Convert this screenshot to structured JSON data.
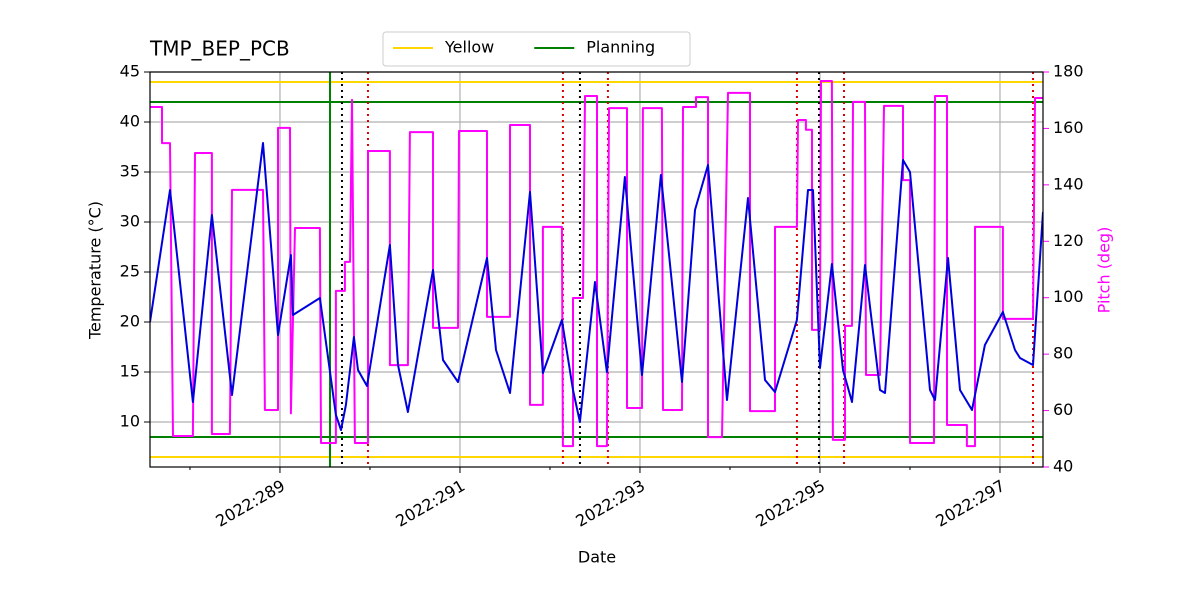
{
  "chart_data": {
    "type": "line",
    "title": "TMP_BEP_PCB",
    "xlabel": "Date",
    "ylabel": "Temperature (°C)",
    "y2label": "Pitch (deg)",
    "xlim": [
      287.556,
      297.478
    ],
    "ylim": [
      5.5,
      45
    ],
    "y2lim": [
      40,
      180
    ],
    "xticks": [
      {
        "value": 289,
        "label": "2022:289"
      },
      {
        "value": 291,
        "label": "2022:291"
      },
      {
        "value": 293,
        "label": "2022:293"
      },
      {
        "value": 295,
        "label": "2022:295"
      },
      {
        "value": 297,
        "label": "2022:297"
      }
    ],
    "xminor_ticks": [
      288,
      290,
      292,
      294,
      296
    ],
    "yticks": [
      10,
      15,
      20,
      25,
      30,
      35,
      40,
      45
    ],
    "y2ticks": [
      40,
      60,
      80,
      100,
      120,
      140,
      160,
      180
    ],
    "grid": true,
    "legend": "top",
    "y2color": "#ff00ff",
    "series": [
      {
        "color": "#0000dd",
        "axis": "y",
        "x": [
          287.556,
          287.778,
          288.033,
          288.244,
          288.467,
          288.811,
          288.978,
          289.122,
          289.144,
          289.444,
          289.622,
          289.678,
          289.733,
          289.822,
          289.867,
          289.967,
          290.222,
          290.311,
          290.422,
          290.7,
          290.811,
          290.978,
          291.3,
          291.4,
          291.556,
          291.778,
          291.922,
          292.133,
          292.256,
          292.333,
          292.5,
          292.633,
          292.833,
          293.022,
          293.233,
          293.467,
          293.611,
          293.756,
          293.967,
          294.2,
          294.389,
          294.5,
          294.744,
          294.867,
          294.922,
          295.0,
          295.133,
          295.256,
          295.356,
          295.5,
          295.667,
          295.722,
          295.922,
          296.0,
          296.222,
          296.278,
          296.422,
          296.556,
          296.689,
          296.833,
          297.033,
          297.167,
          297.222,
          297.367,
          297.478
        ],
        "values": [
          20.0,
          33.2,
          12.0,
          30.7,
          12.7,
          37.9,
          18.7,
          26.7,
          20.7,
          22.4,
          10.7,
          9.2,
          11.7,
          18.5,
          15.2,
          13.6,
          27.7,
          15.7,
          11.0,
          25.2,
          16.2,
          14.0,
          26.4,
          17.2,
          12.9,
          33.0,
          14.9,
          20.2,
          13.2,
          10.0,
          24.0,
          15.0,
          34.5,
          14.7,
          34.7,
          14.0,
          31.2,
          35.7,
          12.2,
          32.4,
          14.2,
          13.0,
          20.2,
          33.2,
          33.2,
          15.4,
          25.8,
          15.2,
          12.0,
          25.7,
          13.2,
          12.9,
          36.2,
          35.0,
          13.2,
          12.2,
          26.4,
          13.2,
          11.2,
          17.7,
          21.0,
          17.2,
          16.4,
          15.7,
          31.0
        ]
      },
      {
        "color": "#ff00ff",
        "axis": "y2",
        "x": [
          287.556,
          287.689,
          287.689,
          287.778,
          287.811,
          288.033,
          288.056,
          288.244,
          288.244,
          288.444,
          288.467,
          288.811,
          288.833,
          288.978,
          288.978,
          289.111,
          289.122,
          289.167,
          289.444,
          289.456,
          289.622,
          289.622,
          289.722,
          289.722,
          289.778,
          289.8,
          289.833,
          289.978,
          289.978,
          290.222,
          290.222,
          290.422,
          290.444,
          290.7,
          290.7,
          290.978,
          290.989,
          291.3,
          291.3,
          291.556,
          291.556,
          291.778,
          291.778,
          291.922,
          291.922,
          292.133,
          292.144,
          292.256,
          292.256,
          292.367,
          292.389,
          292.522,
          292.522,
          292.633,
          292.656,
          292.856,
          292.856,
          293.022,
          293.033,
          293.244,
          293.256,
          293.467,
          293.478,
          293.622,
          293.622,
          293.756,
          293.756,
          293.911,
          293.978,
          294.222,
          294.222,
          294.5,
          294.5,
          294.744,
          294.756,
          294.844,
          294.844,
          294.911,
          294.911,
          295.0,
          295.011,
          295.133,
          295.144,
          295.278,
          295.278,
          295.356,
          295.367,
          295.5,
          295.511,
          295.667,
          295.711,
          295.922,
          295.922,
          296.0,
          296.0,
          296.267,
          296.278,
          296.411,
          296.411,
          296.633,
          296.633,
          296.722,
          296.722,
          297.033,
          297.033,
          297.367,
          297.389,
          297.478
        ],
        "values": [
          167.6,
          167.6,
          154.8,
          154.8,
          51.0,
          51.0,
          151.3,
          151.3,
          51.7,
          51.7,
          138.2,
          138.2,
          60.2,
          60.2,
          160.2,
          160.2,
          59.0,
          124.7,
          124.7,
          48.5,
          48.5,
          102.4,
          102.4,
          112.7,
          112.7,
          170.1,
          48.5,
          48.5,
          152.0,
          152.0,
          76.1,
          76.1,
          158.7,
          158.7,
          89.3,
          89.3,
          159.1,
          159.1,
          93.2,
          93.2,
          161.2,
          161.2,
          62.0,
          62.0,
          125.1,
          125.1,
          47.4,
          47.4,
          99.9,
          99.9,
          171.5,
          171.5,
          47.4,
          47.4,
          167.2,
          167.2,
          60.9,
          60.9,
          167.2,
          167.2,
          60.2,
          60.2,
          167.6,
          167.6,
          171.1,
          171.1,
          50.6,
          50.6,
          172.6,
          172.6,
          59.8,
          59.8,
          125.1,
          125.1,
          163.0,
          163.0,
          159.5,
          159.5,
          88.6,
          88.6,
          176.8,
          176.8,
          49.6,
          49.6,
          90.0,
          90.0,
          169.4,
          169.4,
          72.6,
          72.6,
          168.0,
          168.0,
          141.7,
          141.7,
          48.5,
          48.5,
          171.5,
          171.5,
          54.9,
          54.9,
          47.4,
          47.4,
          125.1,
          125.1,
          92.5,
          92.5,
          170.8,
          170.8
        ]
      }
    ],
    "reference_lines": [
      {
        "name": "Yellow",
        "color": "#ffd700",
        "values": [
          6.5,
          44
        ]
      },
      {
        "name": "Planning",
        "color": "#008000",
        "values": [
          8.5,
          42
        ]
      }
    ],
    "vlines": [
      {
        "x": 289.556,
        "color": "#008000",
        "style": "solid"
      },
      {
        "x": 289.689,
        "color": "#000000",
        "style": "dotted"
      },
      {
        "x": 292.333,
        "color": "#000000",
        "style": "dotted"
      },
      {
        "x": 294.989,
        "color": "#000000",
        "style": "dotted"
      },
      {
        "x": 289.978,
        "color": "#dd0000",
        "style": "dotted"
      },
      {
        "x": 292.144,
        "color": "#dd0000",
        "style": "dotted"
      },
      {
        "x": 292.644,
        "color": "#dd0000",
        "style": "dotted"
      },
      {
        "x": 294.744,
        "color": "#dd0000",
        "style": "dotted"
      },
      {
        "x": 295.267,
        "color": "#dd0000",
        "style": "dotted"
      },
      {
        "x": 297.367,
        "color": "#dd0000",
        "style": "dotted"
      }
    ]
  }
}
